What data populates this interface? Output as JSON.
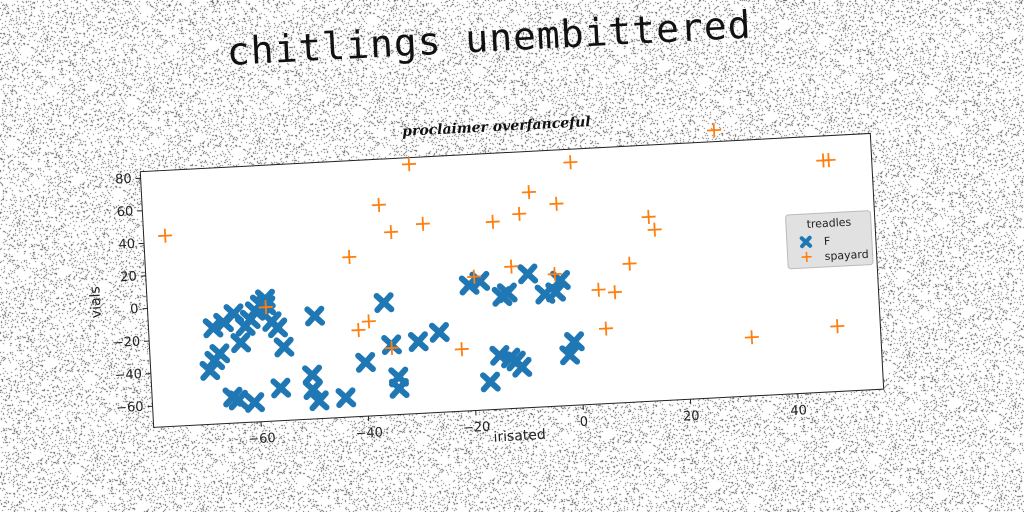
{
  "main_title": "chitlings unembittered",
  "chart_data": {
    "type": "scatter",
    "title": "proclaimer overfanceful",
    "xlabel": "irisated",
    "ylabel": "vials",
    "xlim": [
      -80,
      56
    ],
    "ylim": [
      -73,
      84
    ],
    "xticks": [
      -60,
      -40,
      -20,
      0,
      20,
      40
    ],
    "yticks": [
      -60,
      -40,
      -20,
      0,
      20,
      40,
      60,
      80
    ],
    "xtick_labels": [
      "−60",
      "−40",
      "−20",
      "0",
      "20",
      "40"
    ],
    "ytick_labels": [
      "−60",
      "−40",
      "−20",
      "0",
      "20",
      "40",
      "60",
      "80"
    ],
    "grid": false,
    "legend": {
      "title": "treadles",
      "position": "center-right",
      "entries": [
        "F",
        "spayard"
      ]
    },
    "series": [
      {
        "name": "F",
        "marker": "X",
        "color": "#1f77b4",
        "points": [
          [
            -69,
            -40
          ],
          [
            -68,
            -34
          ],
          [
            -67,
            -30
          ],
          [
            -68,
            -14
          ],
          [
            -66,
            -11
          ],
          [
            -64,
            -6
          ],
          [
            -63,
            -24
          ],
          [
            -62,
            -14
          ],
          [
            -61,
            -10
          ],
          [
            -60,
            -5
          ],
          [
            -59,
            -1
          ],
          [
            -58,
            2
          ],
          [
            -57,
            -12
          ],
          [
            -56,
            -16
          ],
          [
            -55,
            -28
          ],
          [
            -56,
            -53
          ],
          [
            -58,
            -2
          ],
          [
            -65,
            -57
          ],
          [
            -64,
            -59
          ],
          [
            -61,
            -61
          ],
          [
            -49,
            -10
          ],
          [
            -50,
            -46
          ],
          [
            -50,
            -55
          ],
          [
            -49,
            -62
          ],
          [
            -44,
            -61
          ],
          [
            -40,
            -40
          ],
          [
            -36,
            -4
          ],
          [
            -35,
            -30
          ],
          [
            -34,
            -50
          ],
          [
            -34,
            -57
          ],
          [
            -30,
            -29
          ],
          [
            -26,
            -24
          ],
          [
            -20,
            4
          ],
          [
            -18,
            6
          ],
          [
            -15,
            -40
          ],
          [
            -13,
            -42
          ],
          [
            -12,
            -44
          ],
          [
            -11,
            -48
          ],
          [
            -17,
            -56
          ],
          [
            -14,
            -4
          ],
          [
            -13,
            -2
          ],
          [
            -9,
            9
          ],
          [
            -6,
            -4
          ],
          [
            -4,
            -3
          ],
          [
            -3,
            4
          ],
          [
            -2,
            -42
          ],
          [
            -1,
            -34
          ]
        ]
      },
      {
        "name": "spayard",
        "marker": "+",
        "color": "#ff7f0e",
        "points": [
          [
            -76,
            44
          ],
          [
            -58,
            -3
          ],
          [
            -42,
            25
          ],
          [
            -41,
            -20
          ],
          [
            -39,
            -15
          ],
          [
            -36,
            56
          ],
          [
            -35,
            -32
          ],
          [
            -34,
            39
          ],
          [
            -30,
            80
          ],
          [
            -28,
            43
          ],
          [
            -22,
            -35
          ],
          [
            -19,
            9
          ],
          [
            -15,
            42
          ],
          [
            -12,
            14
          ],
          [
            -10,
            46
          ],
          [
            -8,
            59
          ],
          [
            -4,
            8
          ],
          [
            -3,
            51
          ],
          [
            0,
            76
          ],
          [
            4,
            -3
          ],
          [
            5,
            -27
          ],
          [
            7,
            -5
          ],
          [
            10,
            12
          ],
          [
            14,
            40
          ],
          [
            15,
            32
          ],
          [
            27,
            91
          ],
          [
            32,
            -37
          ],
          [
            47,
            69
          ],
          [
            48,
            69
          ],
          [
            48,
            -33
          ]
        ]
      }
    ]
  }
}
